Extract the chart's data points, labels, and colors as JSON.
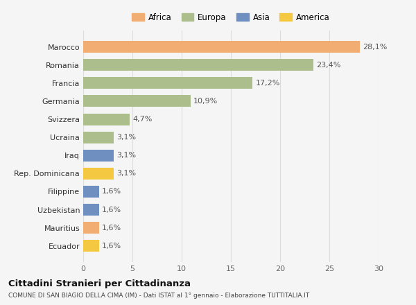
{
  "countries": [
    "Marocco",
    "Romania",
    "Francia",
    "Germania",
    "Svizzera",
    "Ucraina",
    "Iraq",
    "Rep. Dominicana",
    "Filippine",
    "Uzbekistan",
    "Mauritius",
    "Ecuador"
  ],
  "values": [
    28.1,
    23.4,
    17.2,
    10.9,
    4.7,
    3.1,
    3.1,
    3.1,
    1.6,
    1.6,
    1.6,
    1.6
  ],
  "labels": [
    "28,1%",
    "23,4%",
    "17,2%",
    "10,9%",
    "4,7%",
    "3,1%",
    "3,1%",
    "3,1%",
    "1,6%",
    "1,6%",
    "1,6%",
    "1,6%"
  ],
  "colors": [
    "#F2AE72",
    "#ABBE8C",
    "#ABBE8C",
    "#ABBE8C",
    "#ABBE8C",
    "#ABBE8C",
    "#6E8FC0",
    "#F5C842",
    "#6E8FC0",
    "#6E8FC0",
    "#F2AE72",
    "#F5C842"
  ],
  "legend": [
    {
      "label": "Africa",
      "color": "#F2AE72"
    },
    {
      "label": "Europa",
      "color": "#ABBE8C"
    },
    {
      "label": "Asia",
      "color": "#6E8FC0"
    },
    {
      "label": "America",
      "color": "#F5C842"
    }
  ],
  "xlim": [
    0,
    30
  ],
  "xticks": [
    0,
    5,
    10,
    15,
    20,
    25,
    30
  ],
  "title": "Cittadini Stranieri per Cittadinanza",
  "subtitle": "COMUNE DI SAN BIAGIO DELLA CIMA (IM) - Dati ISTAT al 1° gennaio - Elaborazione TUTTITALIA.IT",
  "bg_color": "#f5f5f5",
  "grid_color": "#dddddd"
}
